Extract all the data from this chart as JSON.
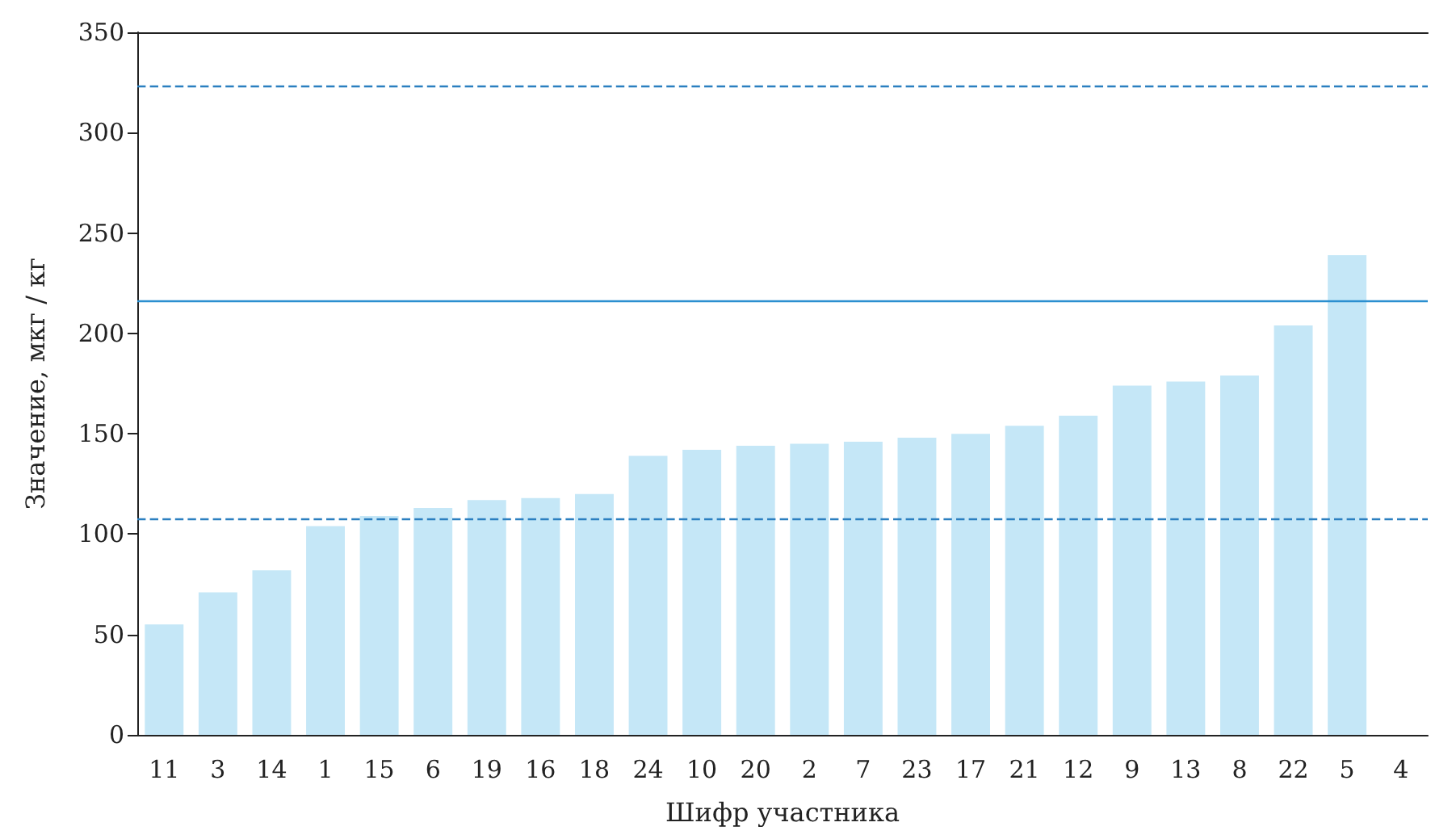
{
  "chart_data": {
    "type": "bar",
    "xlabel": "Шифр участника",
    "ylabel": "Значение, мкг / кг",
    "categories": [
      "11",
      "3",
      "14",
      "1",
      "15",
      "6",
      "19",
      "16",
      "18",
      "24",
      "10",
      "20",
      "2",
      "7",
      "23",
      "17",
      "21",
      "12",
      "9",
      "13",
      "8",
      "22",
      "5",
      "4"
    ],
    "values": [
      55,
      71,
      82,
      104,
      109,
      113,
      117,
      118,
      120,
      139,
      142,
      144,
      145,
      146,
      148,
      150,
      154,
      159,
      174,
      176,
      179,
      204,
      239,
      null
    ],
    "color": "#c5e7f7",
    "ylim": [
      0,
      350
    ],
    "yticks": [
      0,
      50,
      100,
      150,
      200,
      250,
      300,
      350
    ],
    "grid": false,
    "ref_lines": [
      {
        "axis": "y",
        "value": 216,
        "color": "#2b8fd0",
        "line_style": "solid"
      },
      {
        "axis": "y",
        "value": 108,
        "color": "#2b7fc0",
        "line_style": "dashed"
      },
      {
        "axis": "y",
        "value": 323,
        "color": "#2b7fc0",
        "line_style": "dashed"
      }
    ]
  }
}
